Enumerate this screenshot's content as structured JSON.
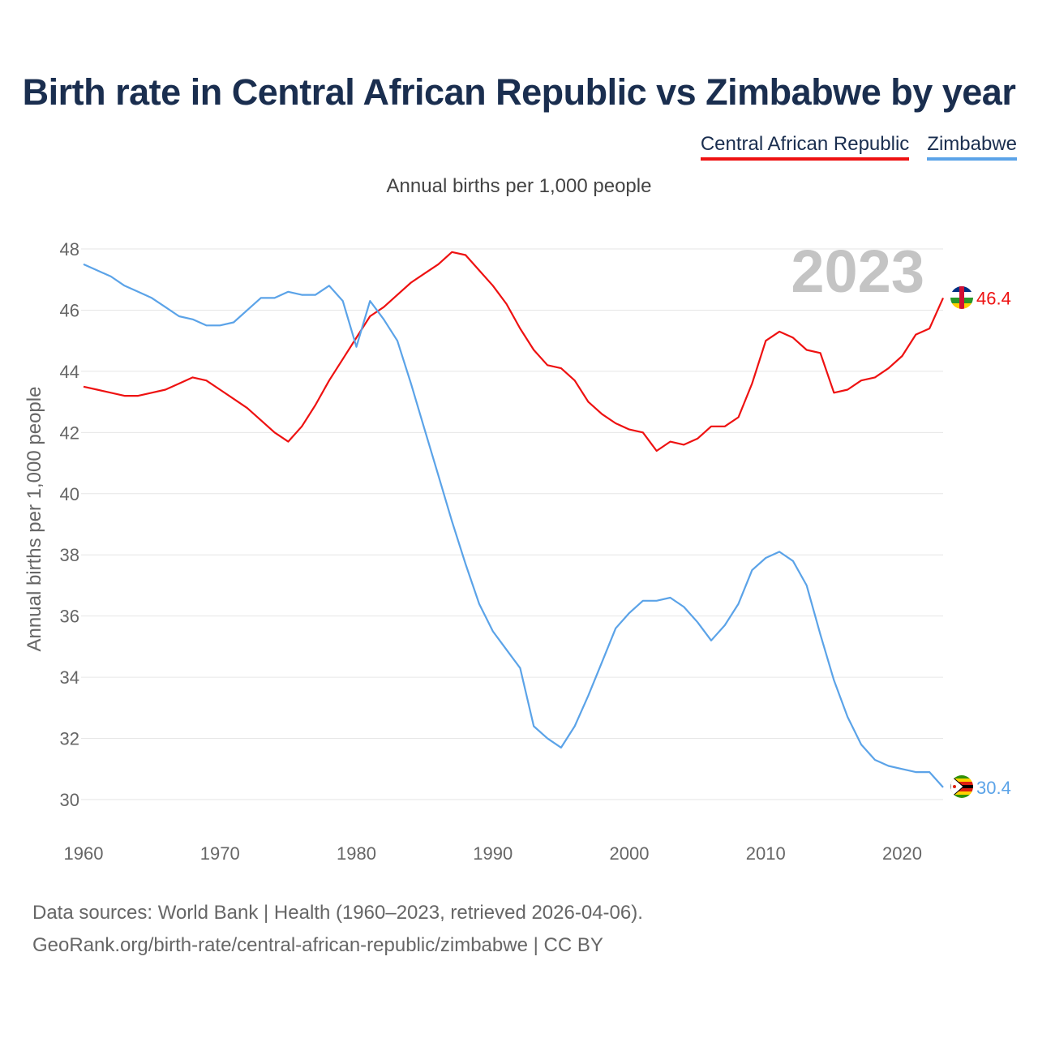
{
  "title": "Birth rate in Central African Republic vs Zimbabwe by year",
  "subtitle": "Annual births per 1,000 people",
  "year_label": "2023",
  "source_line1": "Data sources: World Bank | Health (1960–2023, retrieved 2026-04-06).",
  "source_line2": "GeoRank.org/birth-rate/central-african-republic/zimbabwe | CC BY",
  "chart_data": {
    "type": "line",
    "title": "Birth rate in Central African Republic vs Zimbabwe by year",
    "xlabel": "",
    "ylabel": "Annual births per 1,000 people",
    "xlim": [
      1960,
      2023
    ],
    "ylim": [
      29,
      48.5
    ],
    "x_ticks": [
      1960,
      1970,
      1980,
      1990,
      2000,
      2010,
      2020
    ],
    "y_ticks": [
      30,
      32,
      34,
      36,
      38,
      40,
      42,
      44,
      46,
      48
    ],
    "legend": "top-right",
    "grid": true,
    "x": [
      1960,
      1961,
      1962,
      1963,
      1964,
      1965,
      1966,
      1967,
      1968,
      1969,
      1970,
      1971,
      1972,
      1973,
      1974,
      1975,
      1976,
      1977,
      1978,
      1979,
      1980,
      1981,
      1982,
      1983,
      1984,
      1985,
      1986,
      1987,
      1988,
      1989,
      1990,
      1991,
      1992,
      1993,
      1994,
      1995,
      1996,
      1997,
      1998,
      1999,
      2000,
      2001,
      2002,
      2003,
      2004,
      2005,
      2006,
      2007,
      2008,
      2009,
      2010,
      2011,
      2012,
      2013,
      2014,
      2015,
      2016,
      2017,
      2018,
      2019,
      2020,
      2021,
      2022,
      2023
    ],
    "series": [
      {
        "name": "Central African Republic",
        "color": "#ee1111",
        "end_label": "46.4",
        "values": [
          43.5,
          43.4,
          43.3,
          43.2,
          43.2,
          43.3,
          43.4,
          43.6,
          43.8,
          43.7,
          43.4,
          43.1,
          42.8,
          42.4,
          42.0,
          41.7,
          42.2,
          42.9,
          43.7,
          44.4,
          45.1,
          45.8,
          46.1,
          46.5,
          46.9,
          47.2,
          47.5,
          47.9,
          47.8,
          47.3,
          46.8,
          46.2,
          45.4,
          44.7,
          44.2,
          44.1,
          43.7,
          43.0,
          42.6,
          42.3,
          42.1,
          42.0,
          41.4,
          41.7,
          41.6,
          41.8,
          42.2,
          42.2,
          42.5,
          43.6,
          45.0,
          45.3,
          45.1,
          44.7,
          44.6,
          43.3,
          43.4,
          43.7,
          43.8,
          44.1,
          44.5,
          45.2,
          45.4,
          46.4
        ]
      },
      {
        "name": "Zimbabwe",
        "color": "#5ba3e8",
        "end_label": "30.4",
        "values": [
          47.5,
          47.3,
          47.1,
          46.8,
          46.6,
          46.4,
          46.1,
          45.8,
          45.7,
          45.5,
          45.5,
          45.6,
          46.0,
          46.4,
          46.4,
          46.6,
          46.5,
          46.5,
          46.8,
          46.3,
          44.8,
          46.3,
          45.7,
          45.0,
          43.6,
          42.1,
          40.6,
          39.1,
          37.7,
          36.4,
          35.5,
          34.9,
          34.3,
          32.4,
          32.0,
          31.7,
          32.4,
          33.4,
          34.5,
          35.6,
          36.1,
          36.5,
          36.5,
          36.6,
          36.3,
          35.8,
          35.2,
          35.7,
          36.4,
          37.5,
          37.9,
          38.1,
          37.8,
          37.0,
          35.4,
          33.9,
          32.7,
          31.8,
          31.3,
          31.1,
          31.0,
          30.9,
          30.9,
          30.4
        ]
      }
    ]
  }
}
